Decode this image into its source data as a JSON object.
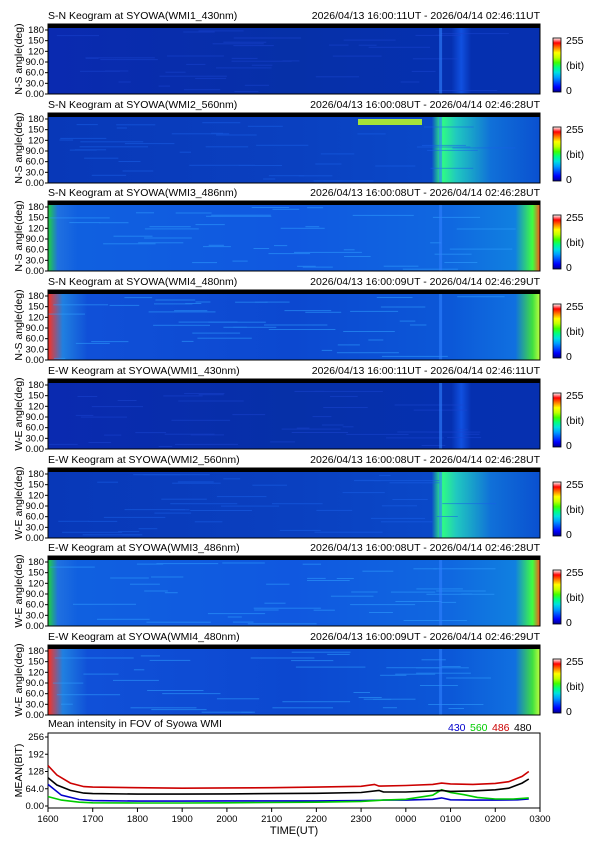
{
  "keograms": [
    {
      "direction": "S-N",
      "title": "S-N Keogram at SYOWA(WMI1_430nm)",
      "time_range": "2026/04/13 16:00:11UT - 2026/04/14 02:46:11UT",
      "ylabel": "N-S angle(deg)",
      "colorbar": {
        "max_label": "255",
        "unit_label": "(bit)",
        "min_label": "0"
      },
      "style": "dim"
    },
    {
      "direction": "S-N",
      "title": "S-N Keogram at SYOWA(WMI2_560nm)",
      "time_range": "2026/04/13 16:00:08UT - 2026/04/14 02:46:28UT",
      "ylabel": "N-S angle(deg)",
      "colorbar": {
        "max_label": "255",
        "unit_label": "(bit)",
        "min_label": "0"
      },
      "style": "green-burst"
    },
    {
      "direction": "S-N",
      "title": "S-N Keogram at SYOWA(WMI3_486nm)",
      "time_range": "2026/04/13 16:00:08UT - 2026/04/14 02:46:28UT",
      "ylabel": "N-S angle(deg)",
      "colorbar": {
        "max_label": "255",
        "unit_label": "(bit)",
        "min_label": "0"
      },
      "style": "bright"
    },
    {
      "direction": "S-N",
      "title": "S-N Keogram at SYOWA(WMI4_480nm)",
      "time_range": "2026/04/13 16:00:09UT - 2026/04/14 02:46:29UT",
      "ylabel": "N-S angle(deg)",
      "colorbar": {
        "max_label": "255",
        "unit_label": "(bit)",
        "min_label": "0"
      },
      "style": "medium"
    },
    {
      "direction": "E-W",
      "title": "E-W Keogram at SYOWA(WMI1_430nm)",
      "time_range": "2026/04/13 16:00:11UT - 2026/04/14 02:46:11UT",
      "ylabel": "W-E angle(deg)",
      "colorbar": {
        "max_label": "255",
        "unit_label": "(bit)",
        "min_label": "0"
      },
      "style": "dim"
    },
    {
      "direction": "E-W",
      "title": "E-W Keogram at SYOWA(WMI2_560nm)",
      "time_range": "2026/04/13 16:00:08UT - 2026/04/14 02:46:28UT",
      "ylabel": "W-E angle(deg)",
      "colorbar": {
        "max_label": "255",
        "unit_label": "(bit)",
        "min_label": "0"
      },
      "style": "green-burst"
    },
    {
      "direction": "E-W",
      "title": "E-W Keogram at SYOWA(WMI3_486nm)",
      "time_range": "2026/04/13 16:00:08UT - 2026/04/14 02:46:28UT",
      "ylabel": "W-E angle(deg)",
      "colorbar": {
        "max_label": "255",
        "unit_label": "(bit)",
        "min_label": "0"
      },
      "style": "bright"
    },
    {
      "direction": "E-W",
      "title": "E-W Keogram at SYOWA(WMI4_480nm)",
      "time_range": "2026/04/13 16:00:09UT - 2026/04/14 02:46:29UT",
      "ylabel": "W-E angle(deg)",
      "colorbar": {
        "max_label": "255",
        "unit_label": "(bit)",
        "min_label": "0"
      },
      "style": "medium"
    }
  ],
  "keogram_yticks": [
    "0.00",
    "30.0",
    "60.0",
    "90.0",
    "120",
    "150",
    "180"
  ],
  "colormap": [
    "#000090",
    "#0000ff",
    "#0050ff",
    "#00a0ff",
    "#00e0e0",
    "#00ff80",
    "#40ff00",
    "#c0ff00",
    "#ffff00",
    "#ff8000",
    "#ff0000",
    "#ffffff"
  ],
  "chart_data": {
    "type": "line",
    "title": "Mean intensity in FOV of Syowa WMI",
    "xlabel": "TIME(UT)",
    "ylabel": "MEAN(BIT)",
    "x_ticks": [
      "1600",
      "1700",
      "1800",
      "1900",
      "2000",
      "2100",
      "2200",
      "2300",
      "0000",
      "0100",
      "0200",
      "0300"
    ],
    "y_ticks": [
      "0.00",
      "64.0",
      "128",
      "192",
      "256"
    ],
    "ylim": [
      0,
      256
    ],
    "legend_position": "top-right",
    "series": [
      {
        "name": "430",
        "color": "#0000cc",
        "points": [
          [
            0,
            80
          ],
          [
            0.3,
            40
          ],
          [
            0.7,
            24
          ],
          [
            1.0,
            20
          ],
          [
            2,
            18
          ],
          [
            3,
            18
          ],
          [
            4,
            19
          ],
          [
            5,
            19
          ],
          [
            6,
            19
          ],
          [
            7,
            20
          ],
          [
            7.5,
            22
          ],
          [
            8,
            22
          ],
          [
            8.6,
            25
          ],
          [
            8.8,
            30
          ],
          [
            9,
            23
          ],
          [
            9.5,
            22
          ],
          [
            10,
            22
          ],
          [
            10.5,
            23
          ],
          [
            10.75,
            26
          ]
        ]
      },
      {
        "name": "560",
        "color": "#00cc00",
        "points": [
          [
            0,
            35
          ],
          [
            0.3,
            22
          ],
          [
            0.7,
            14
          ],
          [
            1.0,
            12
          ],
          [
            2,
            11
          ],
          [
            3,
            11
          ],
          [
            4,
            12
          ],
          [
            5,
            13
          ],
          [
            6,
            14
          ],
          [
            7,
            17
          ],
          [
            7.5,
            22
          ],
          [
            8,
            25
          ],
          [
            8.6,
            40
          ],
          [
            8.8,
            60
          ],
          [
            9,
            50
          ],
          [
            9.3,
            42
          ],
          [
            9.6,
            32
          ],
          [
            10,
            26
          ],
          [
            10.4,
            26
          ],
          [
            10.75,
            30
          ]
        ]
      },
      {
        "name": "486",
        "color": "#cc0000",
        "points": [
          [
            0,
            150
          ],
          [
            0.2,
            115
          ],
          [
            0.5,
            85
          ],
          [
            0.8,
            72
          ],
          [
            1.0,
            70
          ],
          [
            2,
            68
          ],
          [
            3,
            66
          ],
          [
            4,
            67
          ],
          [
            5,
            68
          ],
          [
            6,
            70
          ],
          [
            7,
            73
          ],
          [
            7.3,
            80
          ],
          [
            7.4,
            74
          ],
          [
            8,
            76
          ],
          [
            8.6,
            80
          ],
          [
            8.8,
            85
          ],
          [
            9,
            82
          ],
          [
            9.5,
            80
          ],
          [
            10,
            84
          ],
          [
            10.3,
            90
          ],
          [
            10.6,
            110
          ],
          [
            10.75,
            128
          ]
        ]
      },
      {
        "name": "480",
        "color": "#000000",
        "points": [
          [
            0,
            105
          ],
          [
            0.2,
            78
          ],
          [
            0.5,
            58
          ],
          [
            0.8,
            48
          ],
          [
            1.0,
            46
          ],
          [
            2,
            44
          ],
          [
            3,
            44
          ],
          [
            4,
            45
          ],
          [
            5,
            46
          ],
          [
            6,
            47
          ],
          [
            7,
            50
          ],
          [
            7.4,
            58
          ],
          [
            7.5,
            52
          ],
          [
            8,
            52
          ],
          [
            8.6,
            56
          ],
          [
            8.8,
            58
          ],
          [
            9,
            54
          ],
          [
            9.5,
            56
          ],
          [
            10,
            60
          ],
          [
            10.3,
            66
          ],
          [
            10.6,
            85
          ],
          [
            10.75,
            100
          ]
        ]
      }
    ]
  }
}
